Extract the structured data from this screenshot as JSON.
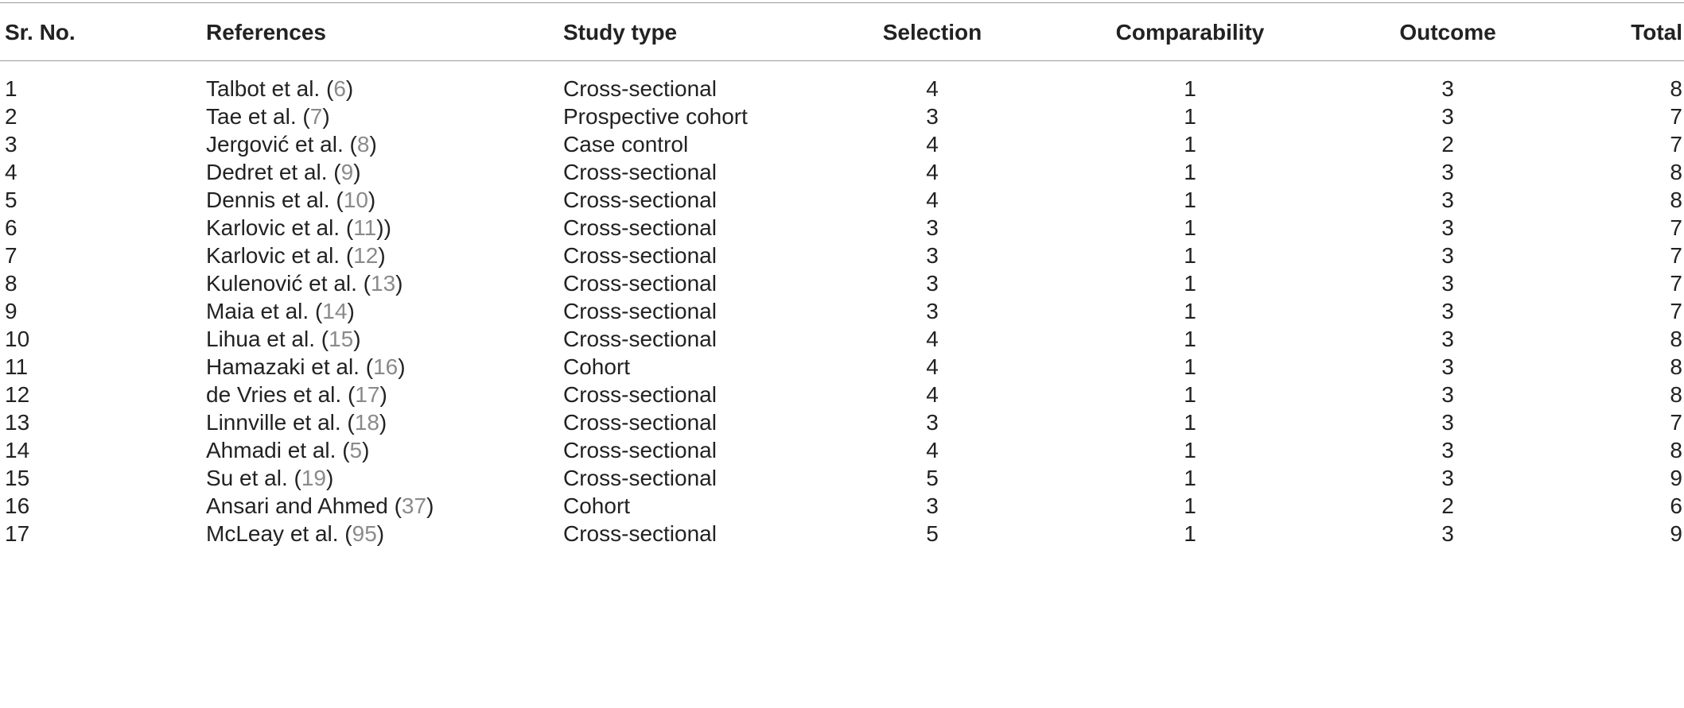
{
  "headers": {
    "sr": "Sr. No.",
    "ref": "References",
    "study": "Study type",
    "sel": "Selection",
    "comp": "Comparability",
    "out": "Outcome",
    "total": "Total"
  },
  "rows": [
    {
      "sr": "1",
      "author": "Talbot et al.",
      "open": " (",
      "num": "6",
      "close": ")",
      "study": "Cross-sectional",
      "sel": "4",
      "comp": "1",
      "out": "3",
      "total": "8"
    },
    {
      "sr": "2",
      "author": "Tae et al.",
      "open": " (",
      "num": "7",
      "close": ")",
      "study": "Prospective cohort",
      "sel": "3",
      "comp": "1",
      "out": "3",
      "total": "7"
    },
    {
      "sr": "3",
      "author": "Jergović et al.",
      "open": " (",
      "num": "8",
      "close": ")",
      "study": "Case control",
      "sel": "4",
      "comp": "1",
      "out": "2",
      "total": "7"
    },
    {
      "sr": "4",
      "author": "Dedret et al.",
      "open": " (",
      "num": "9",
      "close": ")",
      "study": "Cross-sectional",
      "sel": "4",
      "comp": "1",
      "out": "3",
      "total": "8"
    },
    {
      "sr": "5",
      "author": "Dennis et al.",
      "open": " (",
      "num": "10",
      "close": ")",
      "study": "Cross-sectional",
      "sel": "4",
      "comp": "1",
      "out": "3",
      "total": "8"
    },
    {
      "sr": "6",
      "author": "Karlovic et al.",
      "open": " (",
      "num": "11",
      "close": "))",
      "study": "Cross-sectional",
      "sel": "3",
      "comp": "1",
      "out": "3",
      "total": "7"
    },
    {
      "sr": "7",
      "author": "Karlovic et al.",
      "open": " (",
      "num": "12",
      "close": ")",
      "study": "Cross-sectional",
      "sel": "3",
      "comp": "1",
      "out": "3",
      "total": "7"
    },
    {
      "sr": "8",
      "author": "Kulenović et al.",
      "open": " (",
      "num": "13",
      "close": ")",
      "study": "Cross-sectional",
      "sel": "3",
      "comp": "1",
      "out": "3",
      "total": "7"
    },
    {
      "sr": "9",
      "author": "Maia et al.",
      "open": " (",
      "num": "14",
      "close": ")",
      "study": "Cross-sectional",
      "sel": "3",
      "comp": "1",
      "out": "3",
      "total": "7"
    },
    {
      "sr": "10",
      "author": "Lihua et al.",
      "open": " (",
      "num": "15",
      "close": ")",
      "study": "Cross-sectional",
      "sel": "4",
      "comp": "1",
      "out": "3",
      "total": "8"
    },
    {
      "sr": "11",
      "author": "Hamazaki et al.",
      "open": " (",
      "num": "16",
      "close": ")",
      "study": "Cohort",
      "sel": "4",
      "comp": "1",
      "out": "3",
      "total": "8"
    },
    {
      "sr": "12",
      "author": "de Vries et al.",
      "open": " (",
      "num": "17",
      "close": ")",
      "study": "Cross-sectional",
      "sel": "4",
      "comp": "1",
      "out": "3",
      "total": "8"
    },
    {
      "sr": "13",
      "author": "Linnville et al.",
      "open": " (",
      "num": "18",
      "close": ")",
      "study": "Cross-sectional",
      "sel": "3",
      "comp": "1",
      "out": "3",
      "total": "7"
    },
    {
      "sr": "14",
      "author": "Ahmadi et al.",
      "open": " (",
      "num": "5",
      "close": ")",
      "study": "Cross-sectional",
      "sel": "4",
      "comp": "1",
      "out": "3",
      "total": "8"
    },
    {
      "sr": "15",
      "author": "Su et al.",
      "open": " (",
      "num": "19",
      "close": ")",
      "study": "Cross-sectional",
      "sel": "5",
      "comp": "1",
      "out": "3",
      "total": "9"
    },
    {
      "sr": "16",
      "author": "Ansari and Ahmed",
      "open": " (",
      "num": "37",
      "close": ")",
      "study": "Cohort",
      "sel": "3",
      "comp": "1",
      "out": "2",
      "total": "6"
    },
    {
      "sr": "17",
      "author": "McLeay et al.",
      "open": " (",
      "num": "95",
      "close": ")",
      "study": "Cross-sectional",
      "sel": "5",
      "comp": "1",
      "out": "3",
      "total": "9"
    }
  ]
}
